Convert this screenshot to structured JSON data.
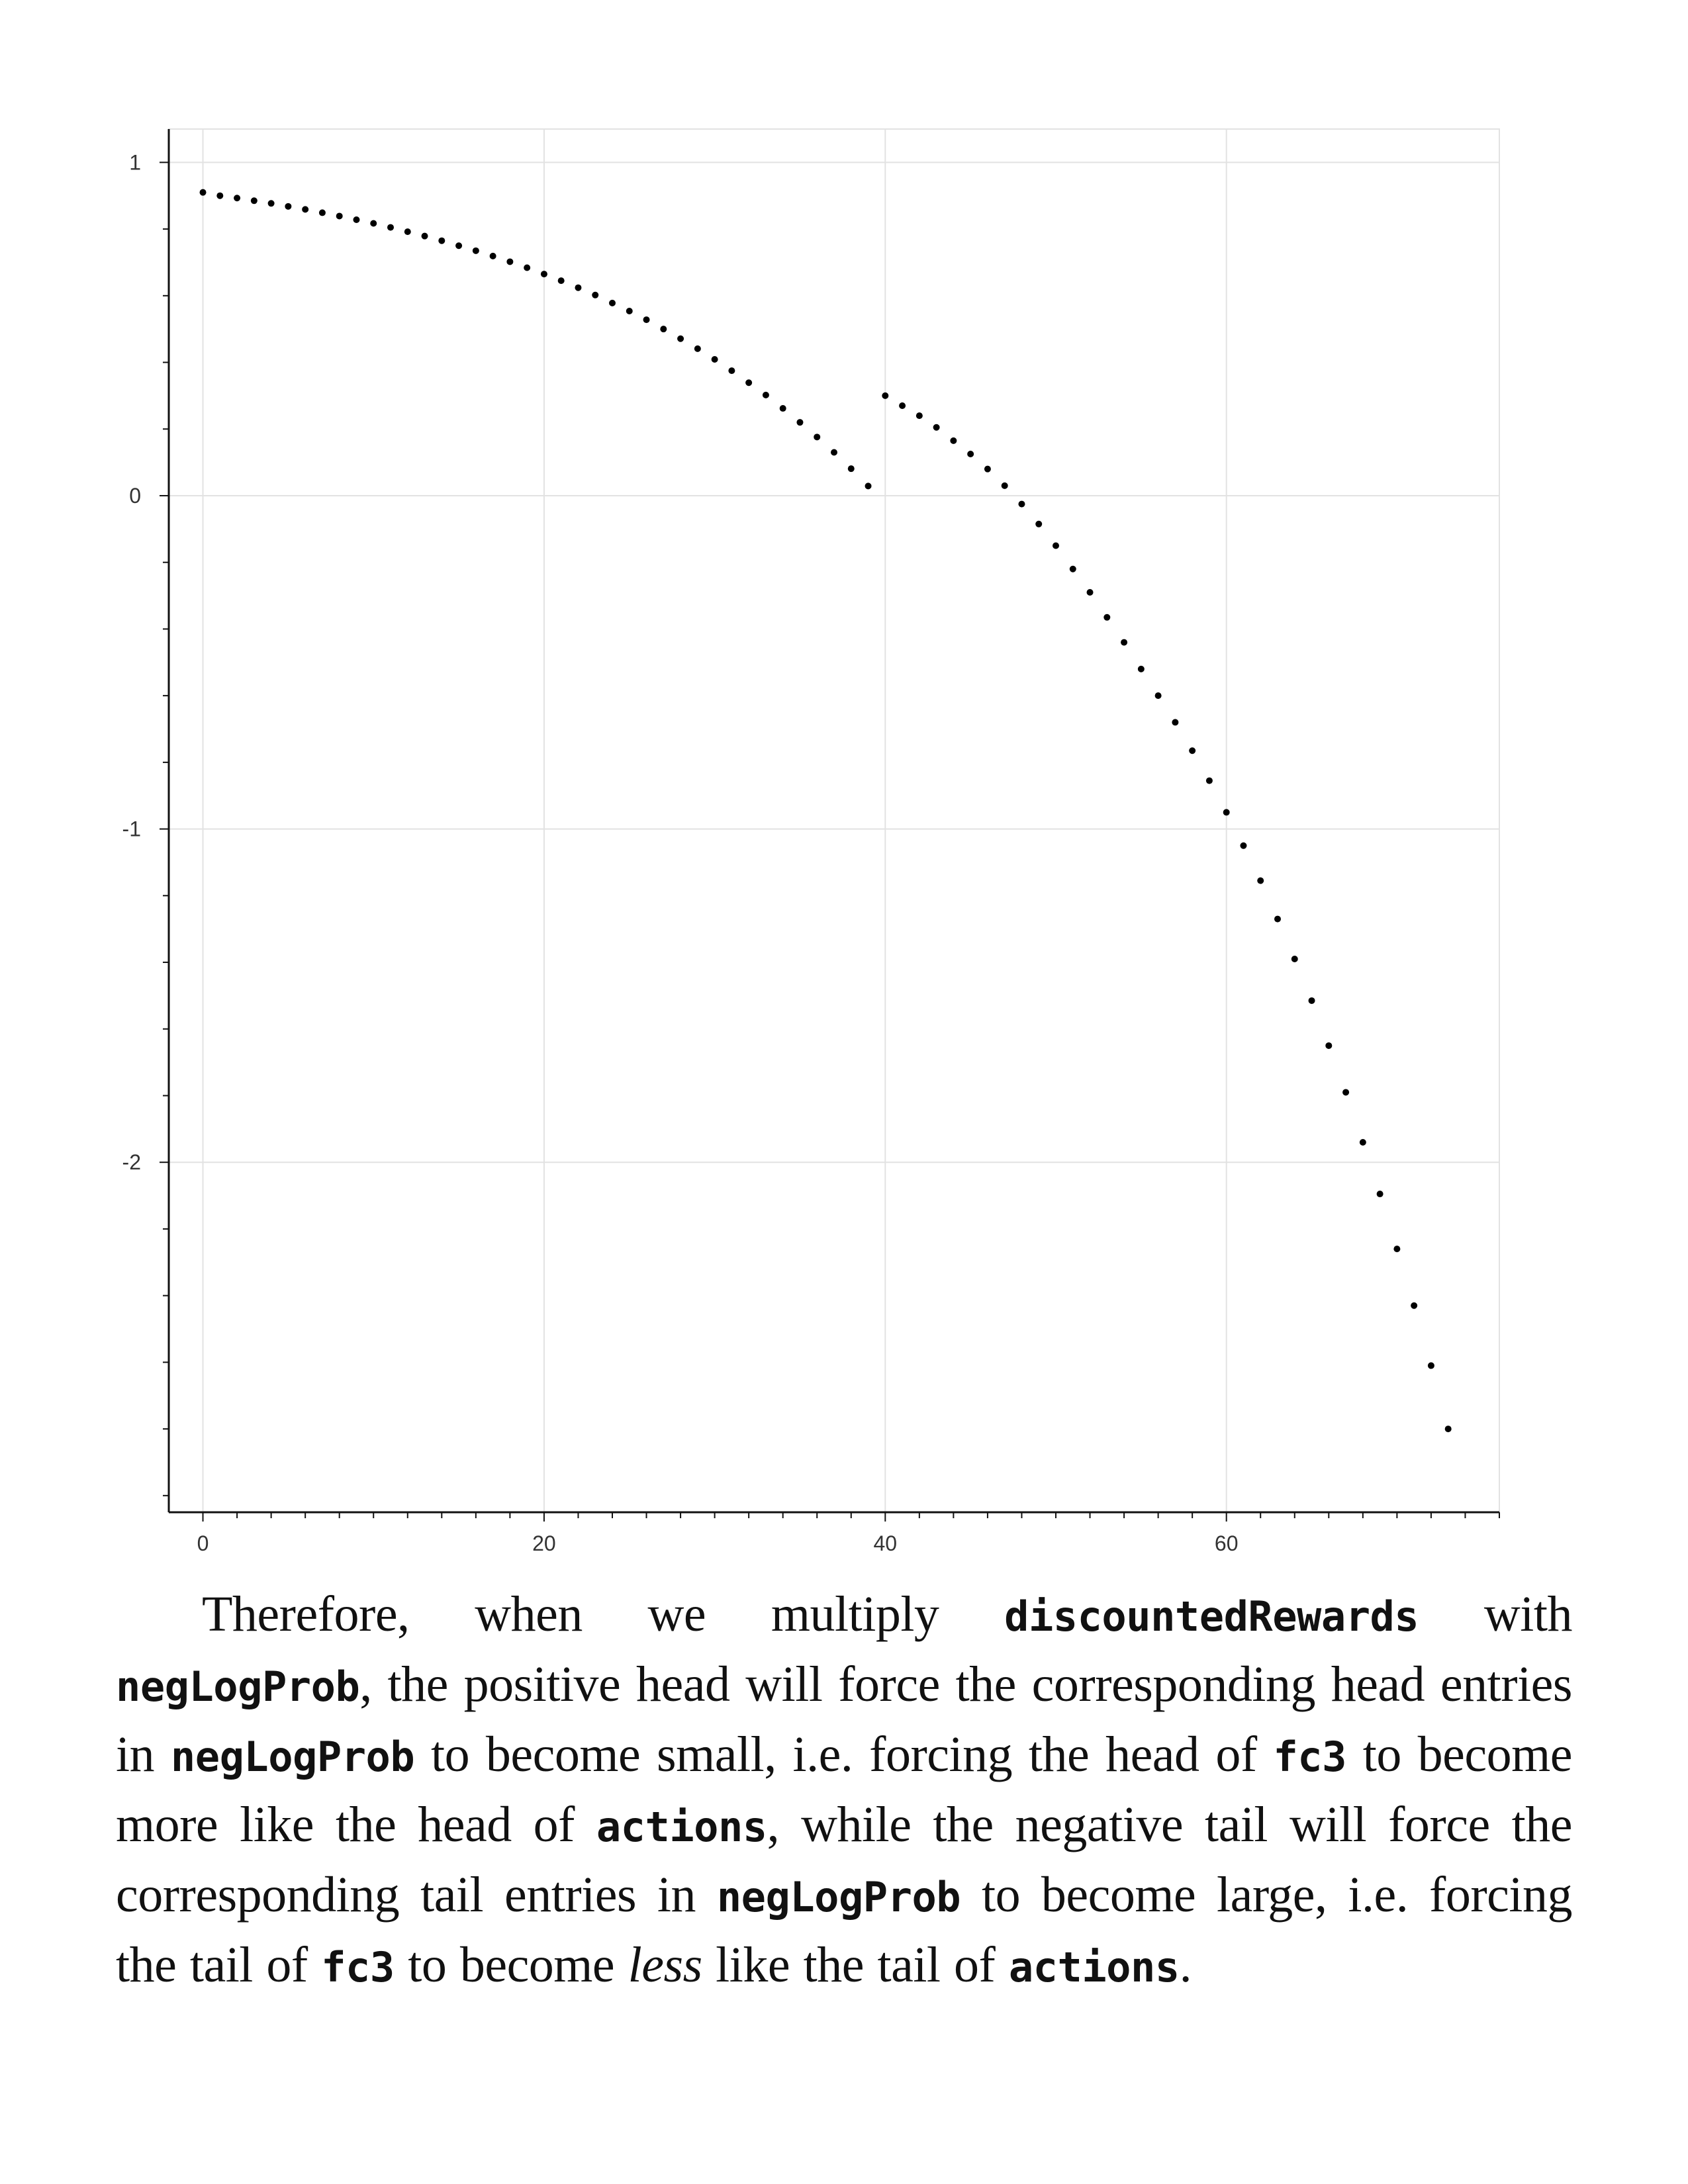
{
  "chart_data": {
    "type": "scatter",
    "title": "",
    "xlabel": "",
    "ylabel": "",
    "xlim": [
      -2,
      76
    ],
    "ylim": [
      -3.05,
      1.1
    ],
    "x_ticks": [
      0,
      20,
      40,
      60
    ],
    "y_ticks": [
      1,
      0,
      -1,
      -2
    ],
    "grid": true,
    "marker_color": "#000000",
    "series": [
      {
        "x": [
          0,
          1,
          2,
          3,
          4,
          5,
          6,
          7,
          8,
          9,
          10,
          11,
          12,
          13,
          14,
          15,
          16,
          17,
          18,
          19,
          20,
          21,
          22,
          23,
          24,
          25,
          26,
          27,
          28,
          29,
          30,
          31,
          32,
          33,
          34,
          35,
          36,
          37,
          38,
          39,
          40,
          41,
          42,
          43,
          44,
          45,
          46,
          47,
          48,
          49,
          50,
          51,
          52,
          53,
          54,
          55,
          56,
          57,
          58,
          59,
          60,
          61,
          62,
          63,
          64,
          65,
          66,
          67,
          68,
          69,
          70,
          71,
          72,
          73
        ],
        "y": [
          0.91,
          0.9,
          0.893,
          0.885,
          0.877,
          0.868,
          0.859,
          0.849,
          0.839,
          0.828,
          0.817,
          0.805,
          0.792,
          0.779,
          0.765,
          0.75,
          0.735,
          0.719,
          0.702,
          0.684,
          0.665,
          0.645,
          0.624,
          0.602,
          0.578,
          0.554,
          0.528,
          0.5,
          0.471,
          0.441,
          0.409,
          0.375,
          0.339,
          0.302,
          0.262,
          0.22,
          0.176,
          0.13,
          0.081,
          0.029,
          0.3,
          0.27,
          0.24,
          0.205,
          0.165,
          0.125,
          0.08,
          0.03,
          -0.025,
          -0.085,
          -0.15,
          -0.22,
          -0.29,
          -0.365,
          -0.44,
          -0.52,
          -0.6,
          -0.68,
          -0.765,
          -0.855,
          -0.95,
          -1.05,
          -1.155,
          -1.27,
          -1.39,
          -1.515,
          -1.65,
          -1.79,
          -1.94,
          -2.095,
          -2.26,
          -2.43,
          -2.61,
          -2.8
        ]
      }
    ]
  },
  "paragraph": {
    "s1": "Therefore, when we multiply ",
    "c1": "discountedRewards",
    "s2": " with ",
    "c2": "negLogProb",
    "s3": ", the positive head will force the corresponding head entries in ",
    "c3": "negLogProb",
    "s4": " to become small, i.e. forcing the head of ",
    "c4": "fc3",
    "s5": " to become more like the head of ",
    "c5": "actions",
    "s6": ", while the nega­tive tail will force the corresponding tail entries in ",
    "c6": "negLogProb",
    "s7": " to become large, i.e. forcing the tail of ",
    "c7": "fc3",
    "s8": " to become ",
    "e1": "less",
    "s9": " like the tail of ",
    "c8": "actions",
    "s10": "."
  }
}
